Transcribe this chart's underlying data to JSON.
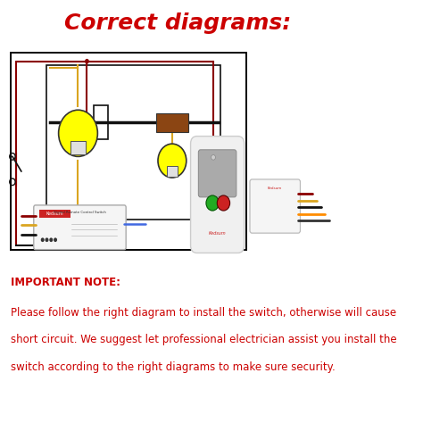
{
  "title": "Correct diagrams:",
  "title_color": "#cc0000",
  "title_fontsize": 18,
  "bg_color": "#ffffff",
  "note_title": "IMPORTANT NOTE:",
  "note_line1": "Please follow the right diagram to install the switch, otherwise will cause",
  "note_line2": "short circuit. We suggest let professional electrician assist you install the",
  "note_line3": "switch according to the right diagrams to make sure security.",
  "note_color": "#cc0000",
  "note_fontsize": 8.5,
  "wire_red": "#8B0000",
  "wire_yellow": "#DAA520",
  "wire_black": "#111111",
  "wire_blue": "#4169E1",
  "wire_orange": "#FF8C00",
  "lamp_color": "#FFFF00",
  "lamp_outline": "#000000",
  "fan_color": "#8B4513",
  "box_color": "#f0f0f0",
  "remote_gray": "#c8c8c8",
  "remote_dark": "#888888"
}
